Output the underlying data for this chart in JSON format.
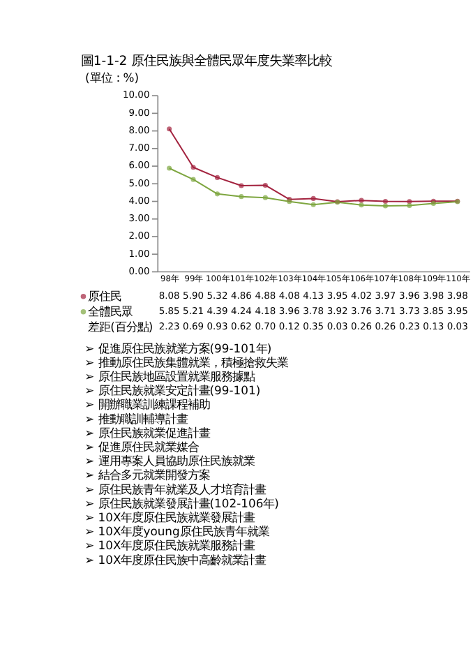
{
  "chart_data": {
    "type": "line",
    "title": "圖1-1-2 原住民族與全體民眾年度失業率比較",
    "ylabel": "(單位：%)",
    "categories": [
      "98年",
      "99年",
      "100年",
      "101年",
      "102年",
      "103年",
      "104年",
      "105年",
      "106年",
      "107年",
      "108年",
      "109年",
      "110年"
    ],
    "series": [
      {
        "name": "原住民",
        "color": "#a3233f",
        "values": [
          8.08,
          5.9,
          5.32,
          4.86,
          4.88,
          4.08,
          4.13,
          3.95,
          4.02,
          3.97,
          3.96,
          3.98,
          3.98
        ],
        "value_labels": [
          "8.08",
          "5.90",
          "5.32",
          "4.86",
          "4.88",
          "4.08",
          "4.13",
          "3.95",
          "4.02",
          "3.97",
          "3.96",
          "3.98",
          "3.98"
        ]
      },
      {
        "name": "全體民眾",
        "color": "#7ea640",
        "values": [
          5.85,
          5.21,
          4.39,
          4.24,
          4.18,
          3.96,
          3.78,
          3.92,
          3.76,
          3.71,
          3.73,
          3.85,
          3.95
        ],
        "value_labels": [
          "5.85",
          "5.21",
          "4.39",
          "4.24",
          "4.18",
          "3.96",
          "3.78",
          "3.92",
          "3.76",
          "3.71",
          "3.73",
          "3.85",
          "3.95"
        ]
      }
    ],
    "ylim": [
      0,
      10
    ],
    "yticks": [
      {
        "value": 0,
        "label": "0.00"
      },
      {
        "value": 1,
        "label": "1.00"
      },
      {
        "value": 2,
        "label": "2.00"
      },
      {
        "value": 3,
        "label": "3.00"
      },
      {
        "value": 4,
        "label": "4.00"
      },
      {
        "value": 5,
        "label": "5.00"
      },
      {
        "value": 6,
        "label": "6.00"
      },
      {
        "value": 7,
        "label": "7.00"
      },
      {
        "value": 8,
        "label": "8.00"
      },
      {
        "value": 9,
        "label": "9.00"
      },
      {
        "value": 10,
        "label": "10.00"
      }
    ],
    "marker": "circle",
    "line_style": "solid",
    "legend": "bottom",
    "annotations": [
      "差距(百分點)",
      "2.23",
      "0.69",
      "0.93",
      "0.62",
      "0.70",
      "0.12",
      "0.35",
      "0.03",
      "0.26",
      "0.26",
      "0.23",
      "0.13",
      "0.03",
      "➢ 促進原住民族就業方案(99-101年)",
      "➢ 推動原住民族集體就業，積極搶救失業",
      "➢ 原住民族地區設置就業服務據點",
      "➢ 原住民族就業安定計畫(99-101)",
      "➢ 開辦職業訓練課程補助",
      "➢ 推動職訓輔導計畫",
      "➢ 原住民族就業促進計畫",
      "➢ 促進原住民就業媒合",
      "➢ 運用專案人員協助原住民族就業",
      "➢ 結合多元就業開發方案",
      "➢ 原住民族青年就業及人才培育計畫",
      "➢ 原住民族就業發展計畫(102-106年)",
      "➢ 10X年度原住民族就業發展計畫",
      "➢ 10X年度young原住民族青年就業",
      "➢ 10X年度原住民族就業服務計畫",
      "➢ 10X年度原住民族中高齡就業計畫"
    ]
  }
}
